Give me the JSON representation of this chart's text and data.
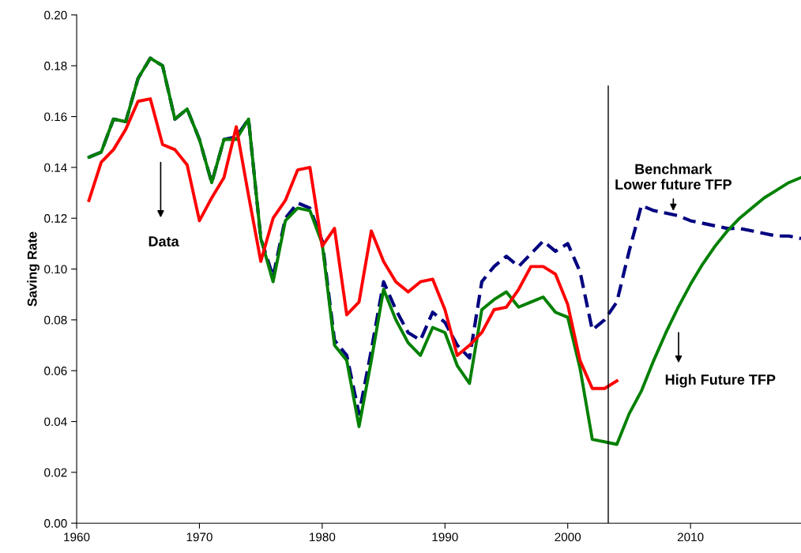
{
  "chart_data": {
    "type": "line",
    "ylabel": "Saving Rate",
    "xlim": [
      1960,
      2019
    ],
    "xticks": [
      1960,
      1970,
      1980,
      1990,
      2000,
      2010
    ],
    "ylim": [
      0,
      0.2
    ],
    "yticks": [
      {
        "value": 0,
        "label": "0.00"
      },
      {
        "value": 0.02,
        "label": "0.02"
      },
      {
        "value": 0.04,
        "label": "0.04"
      },
      {
        "value": 0.06,
        "label": "0.06"
      },
      {
        "value": 0.08,
        "label": "0.08"
      },
      {
        "value": 0.1,
        "label": "0.10"
      },
      {
        "value": 0.12,
        "label": "0.12"
      },
      {
        "value": 0.14,
        "label": "0.14"
      },
      {
        "value": 0.16,
        "label": "0.16"
      },
      {
        "value": 0.18,
        "label": "0.18"
      },
      {
        "value": 0.2,
        "label": "0.20"
      }
    ],
    "grid": false,
    "legend": false,
    "marker": "none",
    "series": [
      {
        "color": "#000080",
        "line_style": "dashed",
        "x": [
          1961,
          1962,
          1963,
          1964,
          1965,
          1966,
          1967,
          1968,
          1969,
          1970,
          1971,
          1972,
          1973,
          1974,
          1975,
          1976,
          1977,
          1978,
          1979,
          1980,
          1981,
          1982,
          1983,
          1984,
          1985,
          1986,
          1987,
          1988,
          1989,
          1990,
          1991,
          1992,
          1993,
          1994,
          1995,
          1996,
          1997,
          1998,
          1999,
          2000,
          2001,
          2002,
          2003,
          2004,
          2005,
          2006,
          2007,
          2008,
          2009,
          2010,
          2011,
          2012,
          2013,
          2014,
          2015,
          2016,
          2017,
          2018,
          2019
        ],
        "values": [
          0.144,
          0.146,
          0.159,
          0.158,
          0.175,
          0.183,
          0.18,
          0.159,
          0.163,
          0.151,
          0.134,
          0.151,
          0.152,
          0.159,
          0.112,
          0.097,
          0.12,
          0.126,
          0.124,
          0.111,
          0.072,
          0.066,
          0.043,
          0.068,
          0.095,
          0.084,
          0.075,
          0.072,
          0.083,
          0.079,
          0.07,
          0.065,
          0.095,
          0.101,
          0.105,
          0.101,
          0.106,
          0.111,
          0.107,
          0.11,
          0.099,
          0.076,
          0.08,
          0.087,
          0.107,
          0.125,
          0.123,
          0.122,
          0.121,
          0.119,
          0.118,
          0.117,
          0.116,
          0.116,
          0.115,
          0.114,
          0.113,
          0.113,
          0.112
        ]
      },
      {
        "color": "#008000",
        "line_style": "solid",
        "x": [
          1961,
          1962,
          1963,
          1964,
          1965,
          1966,
          1967,
          1968,
          1969,
          1970,
          1971,
          1972,
          1973,
          1974,
          1975,
          1976,
          1977,
          1978,
          1979,
          1980,
          1981,
          1982,
          1983,
          1984,
          1985,
          1986,
          1987,
          1988,
          1989,
          1990,
          1991,
          1992,
          1993,
          1994,
          1995,
          1996,
          1997,
          1998,
          1999,
          2000,
          2001,
          2002,
          2003,
          2004,
          2005,
          2006,
          2007,
          2008,
          2009,
          2010,
          2011,
          2012,
          2013,
          2014,
          2015,
          2016,
          2017,
          2018,
          2019
        ],
        "values": [
          0.144,
          0.146,
          0.159,
          0.158,
          0.175,
          0.183,
          0.18,
          0.159,
          0.163,
          0.151,
          0.134,
          0.151,
          0.151,
          0.159,
          0.112,
          0.095,
          0.119,
          0.124,
          0.123,
          0.11,
          0.07,
          0.064,
          0.038,
          0.064,
          0.092,
          0.08,
          0.071,
          0.066,
          0.077,
          0.075,
          0.062,
          0.055,
          0.084,
          0.088,
          0.091,
          0.085,
          0.087,
          0.089,
          0.083,
          0.081,
          0.061,
          0.033,
          0.032,
          0.031,
          0.043,
          0.052,
          0.064,
          0.075,
          0.085,
          0.094,
          0.102,
          0.109,
          0.115,
          0.12,
          0.124,
          0.128,
          0.131,
          0.134,
          0.136
        ]
      },
      {
        "color": "#ff0000",
        "line_style": "solid",
        "x": [
          1961,
          1962,
          1963,
          1964,
          1965,
          1966,
          1967,
          1968,
          1969,
          1970,
          1971,
          1972,
          1973,
          1974,
          1975,
          1976,
          1977,
          1978,
          1979,
          1980,
          1981,
          1982,
          1983,
          1984,
          1985,
          1986,
          1987,
          1988,
          1989,
          1990,
          1991,
          1992,
          1993,
          1994,
          1995,
          1996,
          1997,
          1998,
          1999,
          2000,
          2001,
          2002,
          2003,
          2004
        ],
        "values": [
          0.127,
          0.142,
          0.147,
          0.155,
          0.166,
          0.167,
          0.149,
          0.147,
          0.141,
          0.119,
          0.128,
          0.136,
          0.156,
          0.129,
          0.103,
          0.12,
          0.127,
          0.139,
          0.14,
          0.109,
          0.116,
          0.082,
          0.087,
          0.115,
          0.103,
          0.095,
          0.091,
          0.095,
          0.096,
          0.084,
          0.066,
          0.07,
          0.075,
          0.084,
          0.085,
          0.092,
          0.101,
          0.101,
          0.098,
          0.086,
          0.064,
          0.053,
          0.053,
          0.056
        ]
      }
    ],
    "ref_lines": [
      {
        "axis": "x",
        "value": 2003.3,
        "label": null,
        "color": "#000000",
        "line_style": "solid"
      }
    ],
    "annotations": [
      "Data",
      {
        "text": "Benchmark\nLower future TFP",
        "x": 2008.6,
        "y": 0.122
      },
      "High Future TFP"
    ]
  }
}
